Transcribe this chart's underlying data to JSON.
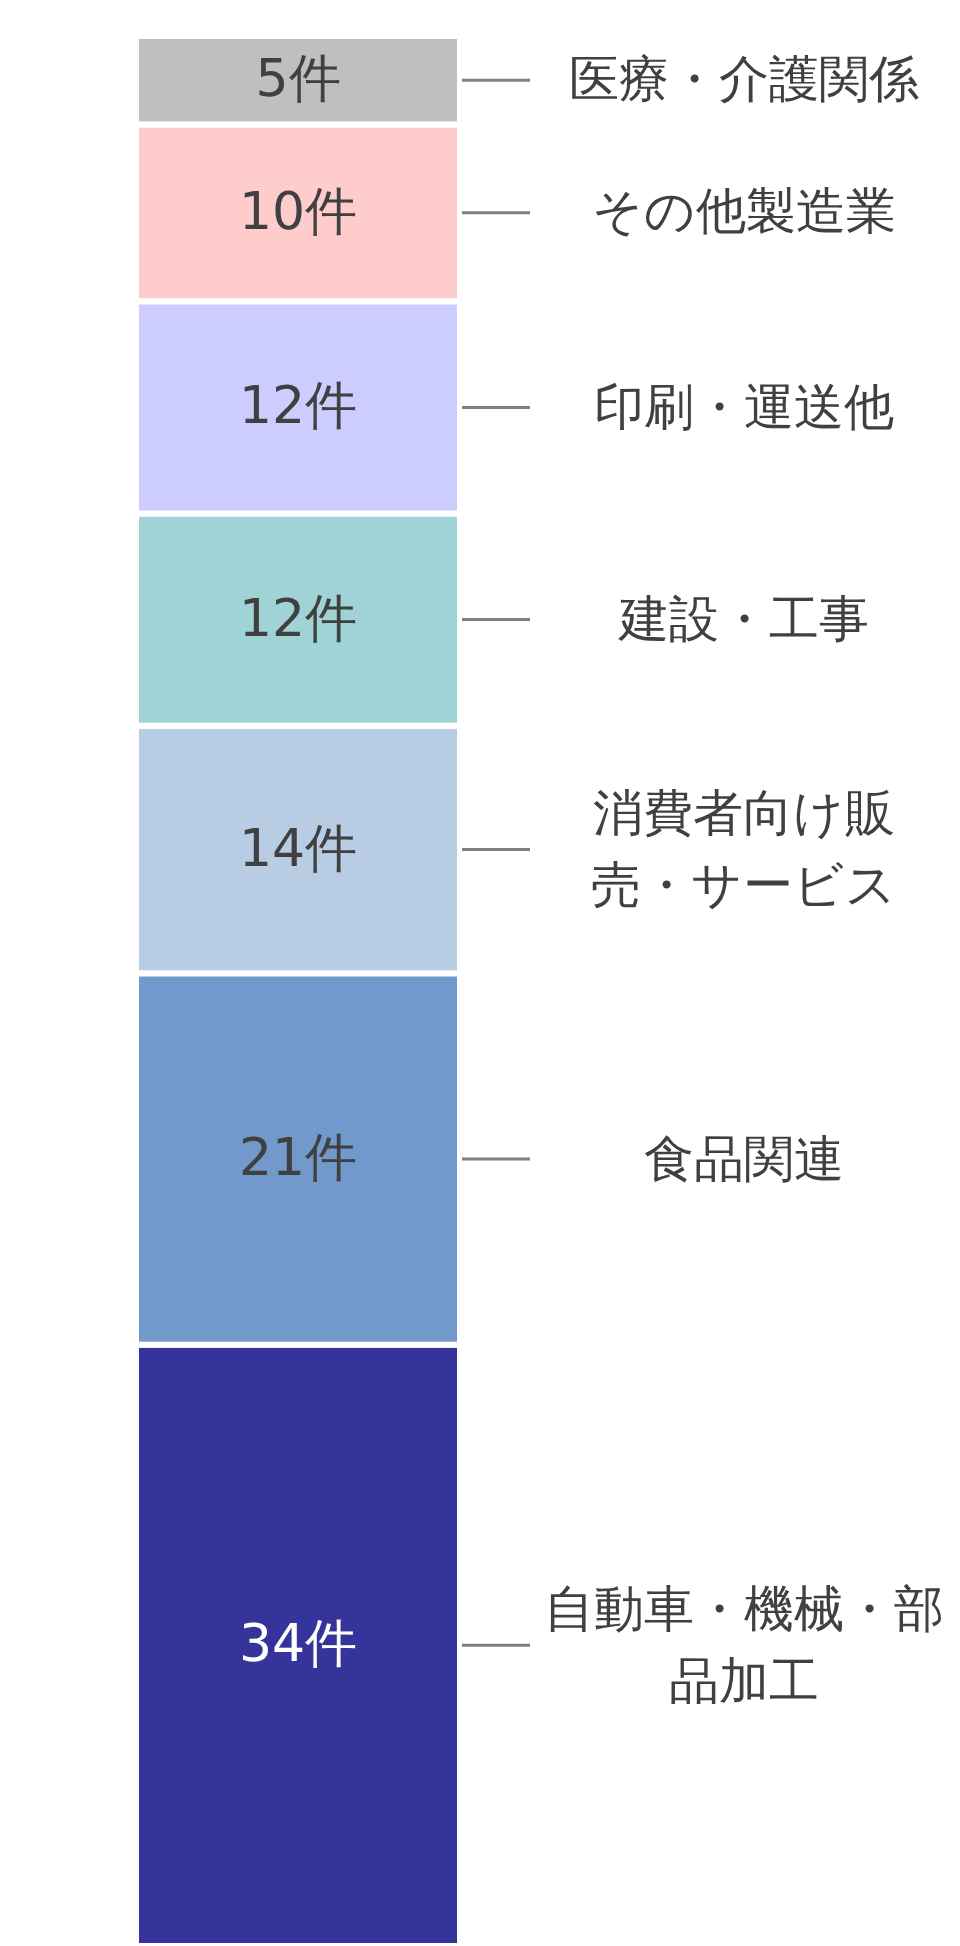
{
  "chart_data": {
    "type": "bar",
    "stacked": true,
    "categories": [
      null
    ],
    "series": [
      {
        "name": "自動車・機械・部品加工",
        "color": "#35349a",
        "values": [
          34
        ],
        "value_labels": [
          "34件"
        ]
      },
      {
        "name": "食品関連",
        "color": "#7199cb",
        "values": [
          21
        ],
        "value_labels": [
          "21件"
        ]
      },
      {
        "name": "消費者向け販売・サービス",
        "color": "#b8cce4",
        "values": [
          14
        ],
        "value_labels": [
          "14件"
        ]
      },
      {
        "name": "建設・工事",
        "color": "#9fd3d6",
        "values": [
          12
        ],
        "value_labels": [
          "12件"
        ]
      },
      {
        "name": "印刷・運送他",
        "color": "#ccccff",
        "values": [
          12
        ],
        "value_labels": [
          "12件"
        ]
      },
      {
        "name": "その他製造業",
        "color": "#ffcccc",
        "values": [
          10
        ],
        "value_labels": [
          "10件"
        ]
      },
      {
        "name": "医療・介護関係",
        "color": "#bfbfbf",
        "values": [
          5
        ],
        "value_labels": [
          "5件"
        ]
      }
    ]
  }
}
